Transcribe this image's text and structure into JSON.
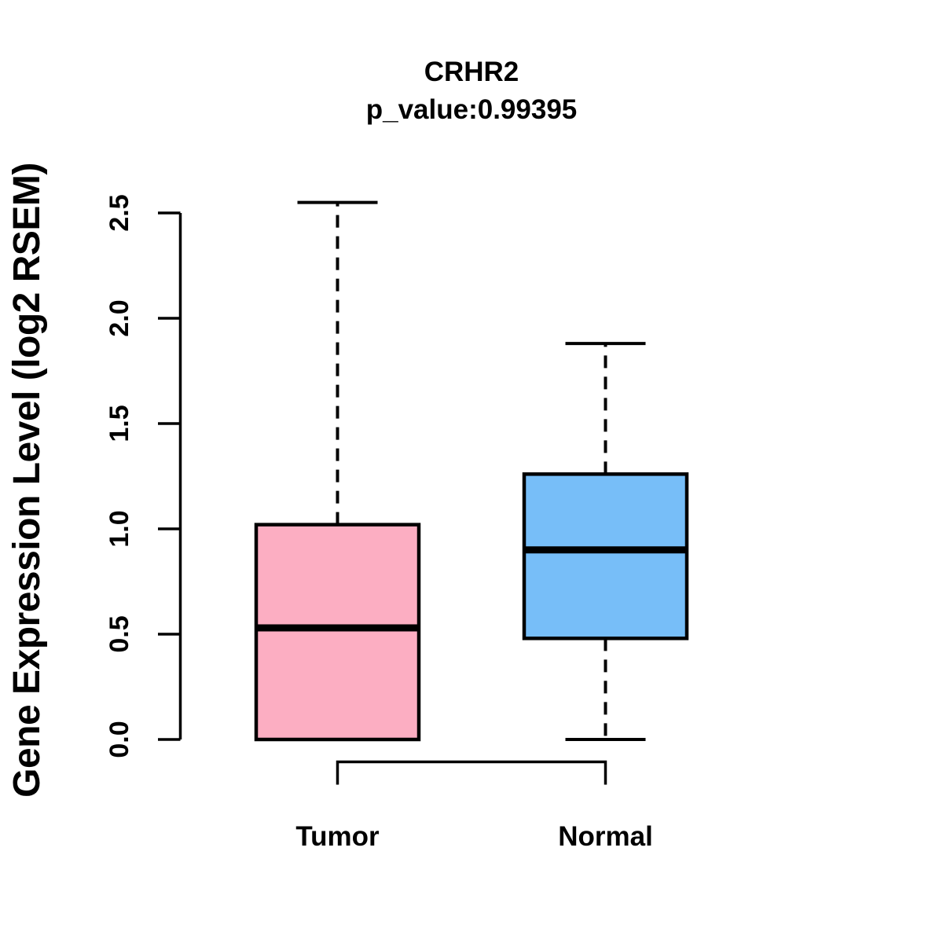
{
  "page": {
    "background": "#ffffff",
    "stroke_color": "#000000"
  },
  "chart_data": {
    "type": "boxplot",
    "title": "CRHR2",
    "subtitle": "p_value:0.99395",
    "ylabel": "Gene Expression Level (log2 RSEM)",
    "xlabel": "",
    "ylim": [
      0.0,
      2.55
    ],
    "grid": false,
    "legend": "none",
    "ytick_labels": [
      "0.0",
      "0.5",
      "1.0",
      "1.5",
      "2.0",
      "2.5"
    ],
    "ytick_values": [
      0.0,
      0.5,
      1.0,
      1.5,
      2.0,
      2.5
    ],
    "categories": [
      "Tumor",
      "Normal"
    ],
    "series": [
      {
        "name": "Tumor",
        "fill_color": "#FCAEC2",
        "stats": {
          "lower_whisker": 0.0,
          "q1": 0.0,
          "median": 0.53,
          "q3": 1.02,
          "upper_whisker": 2.55
        },
        "outliers": []
      },
      {
        "name": "Normal",
        "fill_color": "#77BEF8",
        "stats": {
          "lower_whisker": 0.0,
          "q1": 0.48,
          "median": 0.9,
          "q3": 1.26,
          "upper_whisker": 1.88
        },
        "outliers": []
      }
    ],
    "comparison_bracket": {
      "between": [
        "Tumor",
        "Normal"
      ]
    }
  }
}
